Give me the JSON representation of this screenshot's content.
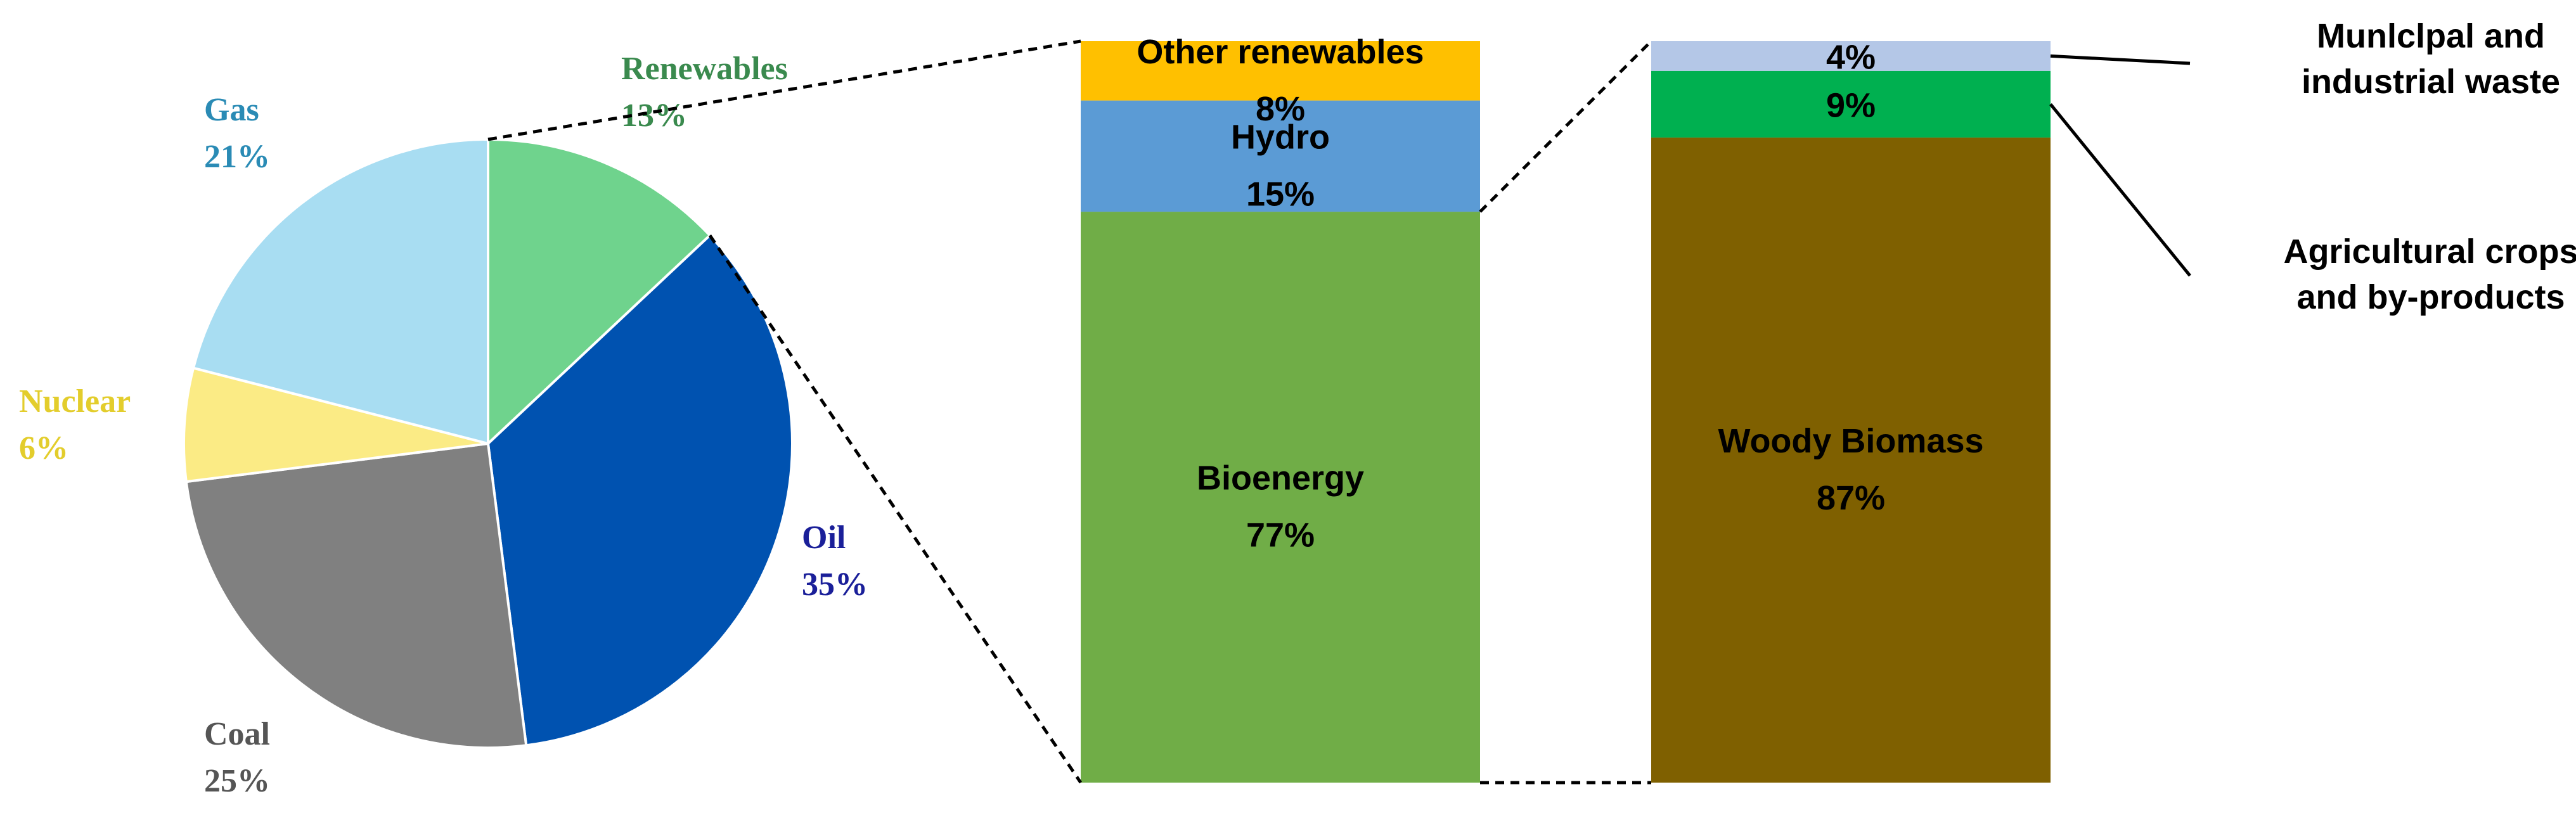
{
  "chart_data": [
    {
      "type": "pie",
      "title": "",
      "slices": [
        {
          "label": "Renewables",
          "value": 13,
          "value_label": "13%",
          "color": "#6fd38d",
          "label_color": "#3a8a4e"
        },
        {
          "label": "Oil",
          "value": 35,
          "value_label": "35%",
          "color": "#0052b0",
          "label_color": "#1a1f99"
        },
        {
          "label": "Coal",
          "value": 25,
          "value_label": "25%",
          "color": "#808080",
          "label_color": "#555555"
        },
        {
          "label": "Nuclear",
          "value": 6,
          "value_label": "6%",
          "color": "#fbeb85",
          "label_color": "#e3cd2c"
        },
        {
          "label": "Gas",
          "value": 21,
          "value_label": "21%",
          "color": "#a8ddf2",
          "label_color": "#2a8bb5"
        }
      ]
    },
    {
      "type": "bar",
      "stacked": true,
      "title": "",
      "breakdown_of": "Renewables",
      "segments": [
        {
          "label": "Bioenergy",
          "value": 77,
          "value_label": "77%",
          "color": "#70ad47"
        },
        {
          "label": "Hydro",
          "value": 15,
          "value_label": "15%",
          "color": "#5b9bd5"
        },
        {
          "label": "Other renewables",
          "value": 8,
          "value_label": "8%",
          "color": "#ffc000"
        }
      ]
    },
    {
      "type": "bar",
      "stacked": true,
      "title": "",
      "breakdown_of": "Bioenergy",
      "segments": [
        {
          "label": "Woody Biomass",
          "value": 87,
          "value_label": "87%",
          "color": "#7f6000",
          "show_label": true
        },
        {
          "label": "Agricultural crops and by-products",
          "value": 9,
          "value_label": "9%",
          "color": "#00b050",
          "show_label": false,
          "callout": [
            "Agricultural crops",
            "and by-products"
          ]
        },
        {
          "label": "Municipal and industrial waste",
          "value": 4,
          "value_label": "4%",
          "color": "#b4c7e7",
          "show_label": false,
          "callout": [
            "Munlclpal and",
            "industrial waste"
          ]
        }
      ]
    }
  ]
}
